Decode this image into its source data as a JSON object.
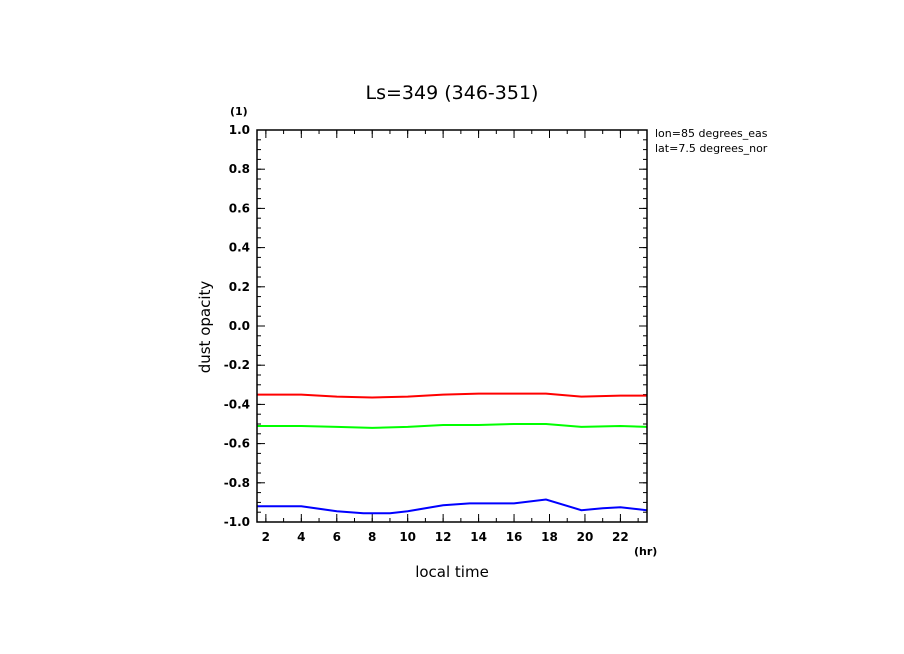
{
  "chart_data": {
    "type": "line",
    "title": "Ls=349 (346-351)",
    "xlabel": "local time",
    "xunit": "(hr)",
    "ylabel": "dust opacity",
    "yunit": "(1)",
    "xlim": [
      1.5,
      23.5
    ],
    "ylim": [
      -1.0,
      1.0
    ],
    "xticks": [
      2,
      4,
      6,
      8,
      10,
      12,
      14,
      16,
      18,
      20,
      22
    ],
    "yticks": [
      -1.0,
      -0.8,
      -0.6,
      -0.4,
      -0.2,
      0.0,
      0.2,
      0.4,
      0.6,
      0.8,
      1.0
    ],
    "annotations": [
      "lon=85 degrees_eas",
      "lat=7.5 degrees_nor"
    ],
    "grid": false,
    "series": [
      {
        "color": "#ff0000",
        "x": [
          1.5,
          4,
          6,
          8,
          10,
          12,
          14,
          16,
          17.8,
          19.8,
          22,
          23.5
        ],
        "y": [
          -0.35,
          -0.35,
          -0.36,
          -0.365,
          -0.36,
          -0.35,
          -0.345,
          -0.345,
          -0.345,
          -0.36,
          -0.355,
          -0.355
        ]
      },
      {
        "color": "#00ff00",
        "x": [
          1.5,
          4,
          6,
          8,
          10,
          12,
          14,
          16,
          17.8,
          19.8,
          22,
          23.5
        ],
        "y": [
          -0.51,
          -0.51,
          -0.515,
          -0.52,
          -0.515,
          -0.505,
          -0.505,
          -0.5,
          -0.5,
          -0.515,
          -0.51,
          -0.515
        ]
      },
      {
        "color": "#0000ff",
        "x": [
          1.5,
          4,
          6,
          7.5,
          9,
          10,
          12,
          13.5,
          16,
          17.8,
          19.8,
          21,
          22,
          23.5
        ],
        "y": [
          -0.92,
          -0.92,
          -0.945,
          -0.955,
          -0.955,
          -0.945,
          -0.915,
          -0.905,
          -0.905,
          -0.885,
          -0.94,
          -0.93,
          -0.925,
          -0.94
        ]
      }
    ]
  }
}
